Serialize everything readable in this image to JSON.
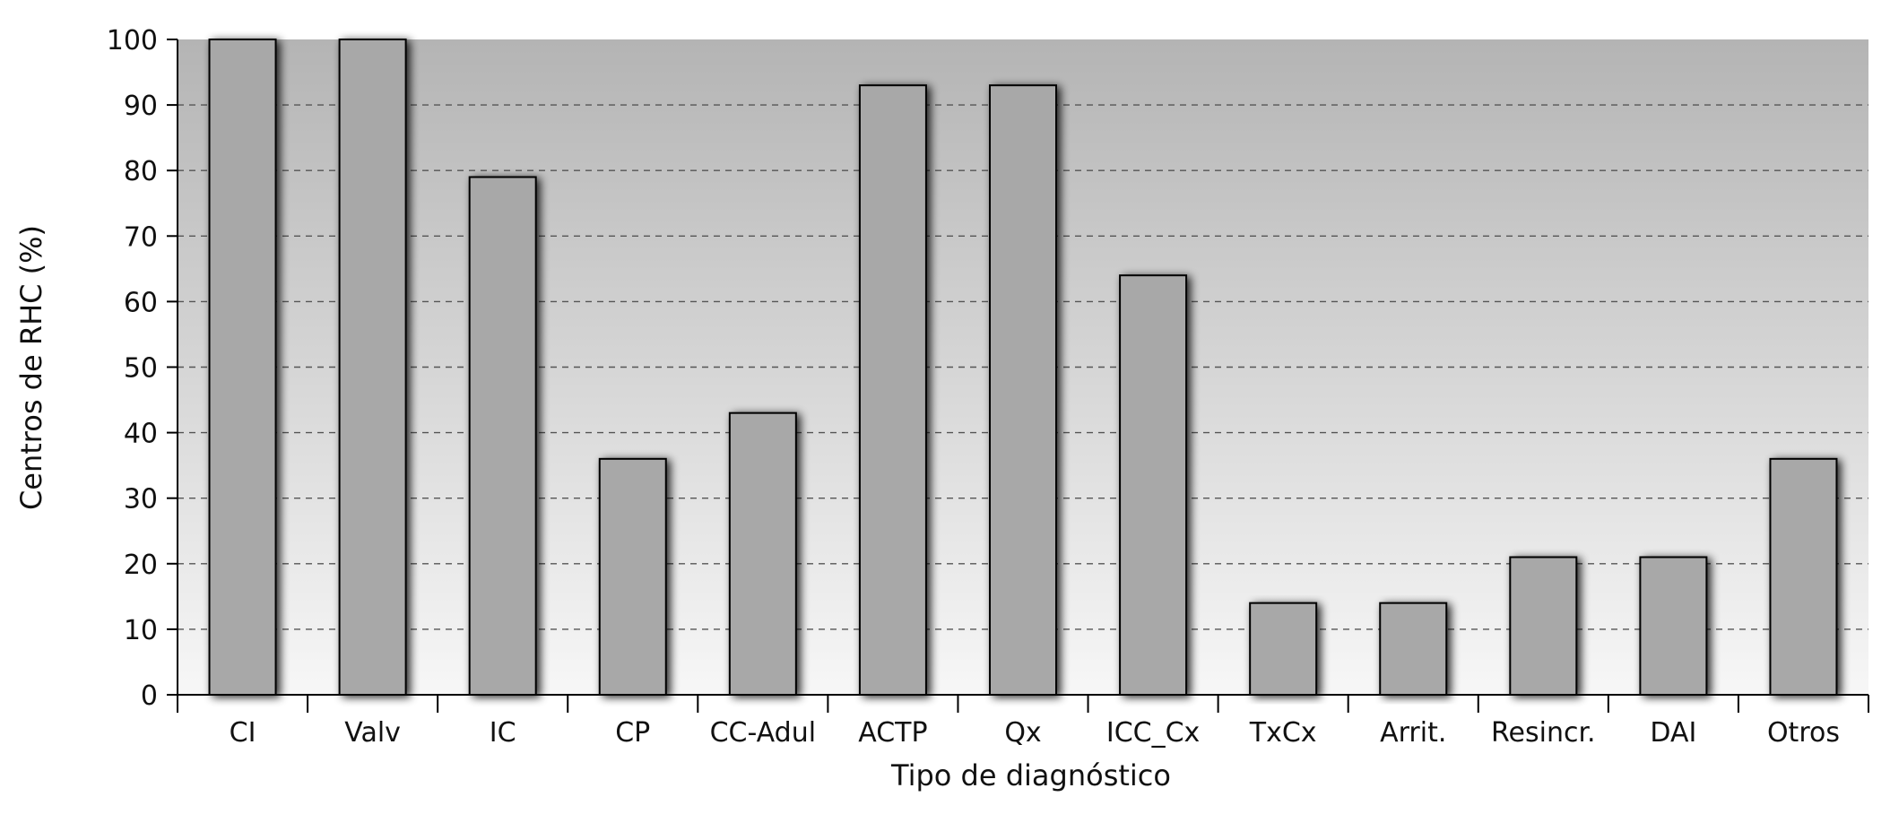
{
  "chart_data": {
    "type": "bar",
    "title": "",
    "xlabel": "Tipo de diagnóstico",
    "ylabel": "Centros de RHC (%)",
    "ylim": [
      0,
      100
    ],
    "yticks": [
      0,
      10,
      20,
      30,
      40,
      50,
      60,
      70,
      80,
      90,
      100
    ],
    "grid": true,
    "categories": [
      "CI",
      "Valv",
      "IC",
      "CP",
      "CC-Adul",
      "ACTP",
      "Qx",
      "ICC_Cx",
      "TxCx",
      "Arrit.",
      "Resincr.",
      "DAI",
      "Otros"
    ],
    "values": [
      100,
      100,
      79,
      36,
      43,
      93,
      93,
      64,
      14,
      14,
      21,
      21,
      36
    ],
    "colors": {
      "bar": "#a8a8a8",
      "bar_stroke": "#000000",
      "plot_bg_top": "#b4b4b4",
      "plot_bg_bottom": "#f7f7f7",
      "grid": "#555555"
    }
  }
}
